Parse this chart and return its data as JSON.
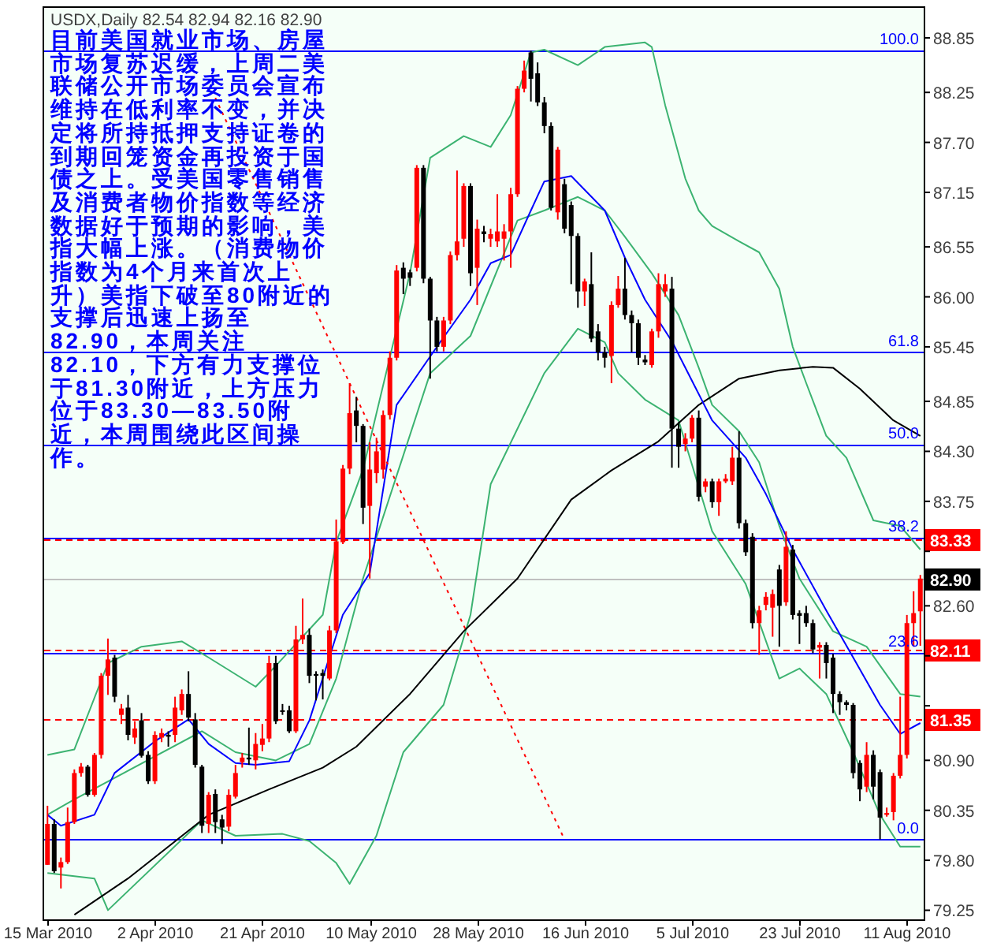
{
  "chart_data": {
    "type": "candlestick",
    "title": "USDX,Daily  82.54 82.94 82.16 82.90",
    "annotations": [
      "目前美国就业市场、房屋市场复苏迟缓，上周二美联储公开市场委员会宣布维持在低利率不变，并决定将所持抵押支持证卷的到期回笼资金再投资于国债之上。受美国零售销售及消费者物价指数等经济数据好于预期的影响，美指大幅上涨。（消费物价指数为4个月来首次上升）美指下破至80附近的支撑后迅速上扬至82.90，本周关注82.10，下方有力支撑位于81.30附近，上方压力位于83.30—83.50附近，本周围绕此区间操作。",
      {
        "text": "100.0",
        "y": 88.71
      },
      {
        "text": "61.8",
        "y": 85.39
      },
      {
        "text": "50.0",
        "y": 84.37
      },
      {
        "text": "38.2",
        "y": 83.35
      },
      {
        "text": "23.6",
        "y": 82.08
      },
      {
        "text": "0.0",
        "y": 80.03
      }
    ],
    "categories": [
      "15 Mar 2010",
      null,
      null,
      null,
      null,
      null,
      null,
      null,
      null,
      null,
      null,
      null,
      null,
      null,
      null,
      null,
      "2 Apr 2010",
      null,
      null,
      null,
      null,
      null,
      null,
      null,
      null,
      null,
      null,
      null,
      null,
      null,
      null,
      null,
      "21 Apr 2010",
      null,
      null,
      null,
      null,
      null,
      null,
      null,
      null,
      null,
      null,
      null,
      null,
      null,
      null,
      null,
      "10 May 2010",
      null,
      null,
      null,
      null,
      null,
      null,
      null,
      null,
      null,
      null,
      null,
      null,
      null,
      null,
      null,
      "28 May 2010",
      null,
      null,
      null,
      null,
      null,
      null,
      null,
      null,
      null,
      null,
      null,
      null,
      null,
      null,
      null,
      "16 Jun 2010",
      null,
      null,
      null,
      null,
      null,
      null,
      null,
      null,
      null,
      null,
      null,
      null,
      null,
      null,
      null,
      "5 Jul 2010",
      null,
      null,
      null,
      null,
      null,
      null,
      null,
      null,
      null,
      null,
      null,
      null,
      null,
      null,
      null,
      "23 Jul 2010",
      null,
      null,
      null,
      null,
      null,
      null,
      null,
      null,
      null,
      null,
      null,
      null,
      null,
      null,
      null,
      "11 Aug 2010",
      null,
      null
    ],
    "ohlc": [
      [
        79.75,
        80.4,
        79.75,
        80.2
      ],
      [
        80.2,
        80.25,
        79.66,
        79.68
      ],
      [
        79.72,
        79.83,
        79.49,
        79.78
      ],
      [
        79.78,
        80.38,
        79.76,
        80.22
      ],
      [
        80.22,
        80.8,
        80.2,
        80.76
      ],
      [
        80.76,
        80.87,
        80.72,
        80.83
      ],
      [
        80.83,
        80.85,
        80.5,
        80.52
      ],
      [
        80.52,
        80.98,
        80.5,
        80.96
      ],
      [
        80.96,
        81.86,
        80.92,
        81.83
      ],
      [
        81.83,
        82.24,
        81.62,
        82.01
      ],
      [
        82.03,
        82.06,
        81.54,
        81.6
      ],
      [
        81.4,
        81.52,
        81.3,
        81.47
      ],
      [
        81.48,
        81.62,
        81.12,
        81.18
      ],
      [
        81.15,
        81.33,
        81.08,
        81.25
      ],
      [
        81.34,
        81.42,
        80.93,
        80.95
      ],
      [
        80.96,
        81.0,
        80.64,
        80.67
      ],
      [
        80.67,
        81.22,
        80.64,
        81.18
      ],
      [
        81.15,
        81.25,
        81.1,
        81.2
      ],
      [
        81.18,
        81.22,
        81.05,
        81.16
      ],
      [
        81.18,
        81.6,
        81.1,
        81.48
      ],
      [
        81.45,
        81.68,
        81.4,
        81.63
      ],
      [
        81.63,
        81.88,
        81.33,
        81.37
      ],
      [
        81.35,
        81.42,
        80.82,
        80.85
      ],
      [
        80.83,
        80.85,
        80.1,
        80.18
      ],
      [
        80.2,
        80.55,
        80.1,
        80.52
      ],
      [
        80.53,
        80.58,
        80.1,
        80.22
      ],
      [
        80.25,
        80.3,
        79.98,
        80.16
      ],
      [
        80.17,
        80.58,
        80.12,
        80.52
      ],
      [
        80.5,
        80.85,
        80.48,
        80.76
      ],
      [
        80.88,
        80.98,
        80.82,
        80.93
      ],
      [
        80.93,
        81.26,
        80.85,
        80.91
      ],
      [
        80.9,
        81.2,
        80.8,
        81.08
      ],
      [
        81.07,
        81.3,
        81.0,
        81.14
      ],
      [
        81.14,
        82.05,
        81.1,
        81.97
      ],
      [
        81.97,
        82.05,
        81.3,
        81.33
      ],
      [
        81.45,
        81.52,
        81.4,
        81.44
      ],
      [
        81.45,
        81.5,
        81.2,
        81.22
      ],
      [
        81.22,
        82.38,
        81.2,
        82.23
      ],
      [
        82.23,
        82.68,
        82.18,
        82.28
      ],
      [
        82.28,
        82.35,
        81.75,
        81.83
      ],
      [
        81.85,
        81.88,
        81.56,
        81.83
      ],
      [
        81.86,
        81.9,
        81.57,
        81.83
      ],
      [
        81.8,
        82.38,
        81.78,
        82.33
      ],
      [
        82.33,
        83.55,
        82.3,
        83.31
      ],
      [
        83.3,
        84.15,
        83.28,
        84.11
      ],
      [
        84.11,
        85.05,
        84.05,
        84.72
      ],
      [
        84.75,
        84.9,
        84.4,
        84.58
      ],
      [
        84.58,
        84.6,
        83.5,
        83.68
      ],
      [
        83.7,
        84.4,
        82.9,
        84.1
      ],
      [
        84.06,
        84.45,
        83.95,
        84.3
      ],
      [
        84.1,
        84.75,
        84.0,
        84.7
      ],
      [
        84.7,
        85.4,
        84.65,
        85.33
      ],
      [
        85.33,
        86.35,
        85.3,
        86.29
      ],
      [
        86.32,
        86.38,
        86.03,
        86.2
      ],
      [
        86.27,
        86.3,
        86.12,
        86.21
      ],
      [
        86.32,
        87.45,
        86.28,
        87.42
      ],
      [
        87.42,
        87.45,
        86.15,
        86.2
      ],
      [
        86.2,
        86.22,
        85.1,
        85.74
      ],
      [
        85.74,
        85.78,
        85.4,
        85.45
      ],
      [
        85.45,
        85.78,
        85.4,
        85.74
      ],
      [
        85.74,
        86.5,
        85.7,
        86.46
      ],
      [
        86.46,
        87.39,
        86.4,
        86.61
      ],
      [
        86.64,
        87.25,
        86.55,
        87.22
      ],
      [
        87.22,
        87.25,
        86.12,
        86.26
      ],
      [
        86.32,
        86.85,
        85.91,
        86.75
      ],
      [
        86.72,
        86.78,
        86.6,
        86.69
      ],
      [
        86.64,
        86.75,
        86.55,
        86.69
      ],
      [
        86.61,
        87.13,
        86.55,
        86.72
      ],
      [
        86.64,
        86.8,
        86.4,
        86.72
      ],
      [
        86.72,
        87.2,
        86.32,
        87.13
      ],
      [
        87.13,
        88.32,
        87.1,
        88.29
      ],
      [
        88.29,
        88.6,
        88.25,
        88.49
      ],
      [
        88.69,
        88.71,
        88.15,
        88.4
      ],
      [
        88.46,
        88.58,
        88.1,
        88.14
      ],
      [
        88.14,
        88.2,
        87.8,
        87.88
      ],
      [
        87.88,
        87.92,
        86.95,
        86.98
      ],
      [
        86.93,
        87.65,
        86.85,
        87.62
      ],
      [
        87.24,
        87.3,
        86.7,
        86.75
      ],
      [
        87.01,
        87.05,
        86.14,
        86.67
      ],
      [
        86.67,
        86.7,
        85.88,
        86.06
      ],
      [
        86.06,
        86.2,
        85.9,
        86.17
      ],
      [
        86.14,
        86.49,
        85.5,
        85.54
      ],
      [
        85.62,
        85.7,
        85.3,
        85.39
      ],
      [
        85.39,
        85.45,
        85.22,
        85.33
      ],
      [
        85.35,
        85.95,
        85.05,
        85.91
      ],
      [
        85.91,
        86.23,
        85.88,
        86.09
      ],
      [
        86.09,
        86.43,
        85.75,
        85.8
      ],
      [
        85.8,
        85.85,
        85.39,
        85.71
      ],
      [
        85.71,
        85.75,
        85.25,
        85.33
      ],
      [
        85.31,
        85.36,
        85.25,
        85.28
      ],
      [
        85.25,
        85.65,
        85.22,
        85.62
      ],
      [
        85.62,
        86.26,
        85.55,
        86.14
      ],
      [
        86.06,
        86.25,
        86.0,
        86.14
      ],
      [
        86.09,
        86.22,
        84.12,
        84.55
      ],
      [
        84.55,
        84.62,
        84.12,
        84.35
      ],
      [
        84.38,
        84.5,
        84.3,
        84.44
      ],
      [
        84.44,
        84.7,
        84.4,
        84.67
      ],
      [
        84.67,
        84.75,
        83.75,
        83.8
      ],
      [
        83.91,
        84.0,
        83.85,
        83.97
      ],
      [
        83.97,
        84.0,
        83.68,
        83.74
      ],
      [
        83.74,
        84.0,
        83.59,
        83.97
      ],
      [
        83.97,
        84.05,
        83.95,
        84.0
      ],
      [
        83.97,
        84.35,
        83.93,
        84.23
      ],
      [
        84.23,
        84.52,
        83.45,
        83.51
      ],
      [
        83.51,
        83.55,
        83.15,
        83.19
      ],
      [
        83.36,
        83.4,
        82.35,
        82.41
      ],
      [
        82.41,
        82.6,
        82.06,
        82.55
      ],
      [
        82.61,
        82.75,
        82.55,
        82.7
      ],
      [
        82.58,
        82.78,
        82.26,
        82.73
      ],
      [
        83.0,
        83.05,
        82.15,
        82.6
      ],
      [
        82.64,
        83.42,
        82.6,
        83.25
      ],
      [
        83.22,
        83.27,
        82.45,
        82.5
      ],
      [
        82.52,
        82.55,
        82.18,
        82.49
      ],
      [
        82.52,
        82.6,
        82.37,
        82.41
      ],
      [
        82.41,
        82.45,
        82.08,
        82.12
      ],
      [
        82.14,
        82.2,
        81.8,
        82.17
      ],
      [
        82.17,
        82.2,
        81.8,
        81.97
      ],
      [
        82.03,
        82.07,
        81.42,
        81.63
      ],
      [
        81.63,
        81.66,
        81.4,
        81.54
      ],
      [
        81.54,
        81.56,
        81.45,
        81.51
      ],
      [
        81.51,
        81.53,
        80.7,
        80.76
      ],
      [
        80.87,
        80.9,
        80.45,
        80.58
      ],
      [
        80.61,
        81.1,
        80.55,
        80.96
      ],
      [
        80.96,
        81.01,
        80.47,
        80.61
      ],
      [
        80.77,
        80.8,
        80.03,
        80.27
      ],
      [
        80.3,
        80.38,
        80.28,
        80.32
      ],
      [
        80.33,
        80.76,
        80.24,
        80.73
      ],
      [
        80.73,
        81.6,
        80.7,
        80.96
      ],
      [
        80.96,
        82.5,
        80.92,
        82.41
      ],
      [
        82.41,
        82.76,
        82.15,
        82.52
      ],
      [
        82.54,
        82.94,
        82.16,
        82.9
      ]
    ],
    "colors": [
      "#ff0000",
      "#000000",
      "#ff0000",
      "#ff0000",
      "#ff0000",
      "#ff0000",
      "#000000",
      "#ff0000",
      "#ff0000",
      "#ff0000",
      "#000000",
      "#ff0000",
      "#000000",
      "#ff0000",
      "#000000",
      "#000000",
      "#ff0000",
      "#ff0000",
      "#000000",
      "#ff0000",
      "#ff0000",
      "#000000",
      "#000000",
      "#000000",
      "#ff0000",
      "#000000",
      "#000000",
      "#ff0000",
      "#ff0000",
      "#ff0000",
      "#000000",
      "#ff0000",
      "#ff0000",
      "#ff0000",
      "#000000",
      "#000000",
      "#000000",
      "#ff0000",
      "#ff0000",
      "#000000",
      "#000000",
      "#000000",
      "#ff0000",
      "#ff0000",
      "#ff0000",
      "#ff0000",
      "#000000",
      "#000000",
      "#ff0000",
      "#ff0000",
      "#ff0000",
      "#ff0000",
      "#ff0000",
      "#000000",
      "#000000",
      "#ff0000",
      "#000000",
      "#000000",
      "#000000",
      "#ff0000",
      "#ff0000",
      "#ff0000",
      "#ff0000",
      "#000000",
      "#ff0000",
      "#000000",
      "#ff0000",
      "#ff0000",
      "#ff0000",
      "#ff0000",
      "#ff0000",
      "#ff0000",
      "#000000",
      "#000000",
      "#000000",
      "#000000",
      "#ff0000",
      "#000000",
      "#000000",
      "#000000",
      "#ff0000",
      "#000000",
      "#000000",
      "#000000",
      "#ff0000",
      "#ff0000",
      "#000000",
      "#000000",
      "#000000",
      "#000000",
      "#ff0000",
      "#ff0000",
      "#ff0000",
      "#000000",
      "#000000",
      "#ff0000",
      "#ff0000",
      "#000000",
      "#ff0000",
      "#000000",
      "#ff0000",
      "#ff0000",
      "#ff0000",
      "#000000",
      "#000000",
      "#000000",
      "#ff0000",
      "#ff0000",
      "#ff0000",
      "#000000",
      "#ff0000",
      "#000000",
      "#000000",
      "#000000",
      "#000000",
      "#ff0000",
      "#000000",
      "#000000",
      "#000000",
      "#000000",
      "#000000",
      "#000000",
      "#ff0000",
      "#000000",
      "#000000",
      "#ff0000",
      "#ff0000",
      "#ff0000",
      "#ff0000",
      "#ff0000",
      "#ff0000"
    ],
    "series": [
      {
        "type": "line",
        "color": "#3cb371",
        "values": [
          80.96,
          null,
          null,
          null,
          81.02,
          null,
          null,
          null,
          null,
          81.97,
          null,
          null,
          null,
          null,
          82.15,
          null,
          null,
          null,
          null,
          null,
          82.21,
          null,
          null,
          null,
          82.03,
          null,
          null,
          null,
          null,
          null,
          null,
          81.71,
          null,
          null,
          81.94,
          null,
          null,
          null,
          null,
          null,
          null,
          82.5,
          null,
          83.3,
          null,
          null,
          null,
          84.1,
          null,
          null,
          null,
          null,
          null,
          null,
          86.26,
          null,
          null,
          87.53,
          null,
          null,
          null,
          null,
          87.77,
          null,
          null,
          null,
          87.65,
          null,
          null,
          88.0,
          null,
          null,
          88.69,
          null,
          88.72,
          null,
          null,
          null,
          null,
          88.55,
          null,
          null,
          null,
          88.75,
          null,
          null,
          null,
          null,
          null,
          88.8,
          88.75,
          null,
          88.11,
          null,
          null,
          87.3,
          null,
          86.95,
          null,
          86.78,
          null,
          null,
          null,
          86.61,
          null,
          null,
          86.49,
          null,
          null,
          86.09,
          null,
          85.45,
          null,
          85.05,
          null,
          null,
          84.47,
          null,
          null,
          84.23,
          null,
          null,
          null,
          83.54,
          null,
          null,
          null,
          83.48,
          null,
          null,
          83.22
        ]
      },
      {
        "type": "line",
        "color": "#3cb371",
        "values": [
          80.3,
          null,
          null,
          null,
          80.47,
          null,
          null,
          null,
          null,
          null,
          null,
          null,
          null,
          null,
          null,
          null,
          null,
          null,
          null,
          null,
          null,
          null,
          null,
          81.22,
          null,
          null,
          null,
          null,
          80.99,
          null,
          null,
          null,
          null,
          null,
          80.9,
          null,
          null,
          null,
          null,
          81.08,
          null,
          null,
          null,
          81.8,
          null,
          null,
          null,
          82.9,
          null,
          null,
          null,
          null,
          null,
          null,
          null,
          null,
          null,
          85.16,
          null,
          null,
          null,
          null,
          null,
          85.57,
          null,
          null,
          null,
          null,
          null,
          null,
          86.84,
          null,
          null,
          null,
          86.95,
          null,
          null,
          null,
          null,
          87.1,
          null,
          null,
          null,
          86.95,
          null,
          null,
          86.66,
          null,
          null,
          null,
          86.26,
          null,
          null,
          null,
          85.8,
          null,
          null,
          85.22,
          null,
          84.81,
          null,
          null,
          null,
          84.52,
          null,
          null,
          84.18,
          null,
          null,
          83.48,
          null,
          null,
          82.9,
          null,
          null,
          null,
          null,
          82.32,
          null,
          null,
          null,
          null,
          82.15,
          null,
          null,
          null,
          null,
          81.63,
          null,
          null,
          81.6
        ]
      },
      {
        "type": "line",
        "color": "#3cb371",
        "values": [
          79.66,
          null,
          null,
          null,
          null,
          null,
          null,
          79.6,
          null,
          79.25,
          null,
          null,
          null,
          null,
          null,
          null,
          null,
          null,
          null,
          null,
          null,
          null,
          null,
          80.24,
          null,
          null,
          null,
          null,
          80.07,
          null,
          null,
          null,
          null,
          null,
          null,
          80.09,
          null,
          null,
          null,
          80.01,
          null,
          null,
          null,
          79.77,
          null,
          79.54,
          null,
          null,
          null,
          80.07,
          null,
          null,
          null,
          80.99,
          null,
          null,
          null,
          null,
          null,
          81.51,
          null,
          null,
          null,
          82.5,
          null,
          null,
          83.94,
          null,
          null,
          null,
          null,
          null,
          null,
          null,
          85.16,
          null,
          null,
          null,
          null,
          85.65,
          null,
          null,
          null,
          85.5,
          null,
          85.16,
          null,
          null,
          null,
          84.87,
          null,
          null,
          null,
          null,
          84.64,
          null,
          null,
          null,
          null,
          83.42,
          null,
          null,
          null,
          null,
          82.84,
          null,
          null,
          null,
          null,
          81.8,
          null,
          null,
          81.91,
          null,
          null,
          null,
          81.63,
          null,
          null,
          null,
          80.99,
          null,
          null,
          null,
          80.3,
          null,
          null,
          79.95,
          null,
          null,
          79.95
        ]
      },
      {
        "type": "line",
        "color": "#000000",
        "values": [
          null,
          null,
          null,
          null,
          79.2,
          null,
          null,
          null,
          null,
          null,
          null,
          null,
          79.6,
          null,
          null,
          null,
          null,
          null,
          null,
          null,
          null,
          null,
          null,
          null,
          80.3,
          null,
          null,
          null,
          null,
          null,
          null,
          null,
          null,
          80.58,
          null,
          null,
          null,
          null,
          null,
          null,
          null,
          80.82,
          null,
          null,
          null,
          null,
          81.05,
          null,
          null,
          null,
          null,
          null,
          null,
          null,
          81.63,
          null,
          null,
          null,
          null,
          null,
          null,
          null,
          82.32,
          null,
          null,
          null,
          null,
          null,
          null,
          null,
          82.9,
          null,
          null,
          null,
          null,
          null,
          null,
          null,
          83.77,
          null,
          null,
          null,
          null,
          null,
          84.09,
          null,
          null,
          null,
          null,
          null,
          null,
          84.41,
          null,
          null,
          null,
          null,
          null,
          84.81,
          null,
          null,
          null,
          null,
          null,
          85.1,
          null,
          null,
          null,
          null,
          null,
          85.19,
          null,
          null,
          null,
          null,
          85.23,
          null,
          null,
          85.22,
          null,
          null,
          null,
          84.99,
          null,
          null,
          null,
          null,
          84.64,
          null,
          null,
          null,
          84.47
        ]
      },
      {
        "type": "line",
        "color": "#0000ff",
        "values": [
          80.3,
          null,
          80.18,
          null,
          null,
          null,
          null,
          80.3,
          null,
          null,
          80.76,
          null,
          null,
          null,
          null,
          null,
          81.11,
          null,
          null,
          null,
          null,
          81.35,
          null,
          null,
          81.08,
          null,
          null,
          null,
          80.87,
          null,
          null,
          80.85,
          null,
          null,
          null,
          null,
          80.89,
          null,
          null,
          81.34,
          null,
          null,
          null,
          null,
          82.5,
          null,
          null,
          null,
          82.96,
          null,
          null,
          null,
          84.81,
          null,
          null,
          null,
          null,
          null,
          85.45,
          null,
          null,
          null,
          null,
          85.97,
          null,
          null,
          86.37,
          null,
          null,
          86.46,
          null,
          null,
          86.95,
          null,
          87.27,
          null,
          null,
          null,
          87.33,
          null,
          null,
          null,
          null,
          86.95,
          null,
          null,
          86.43,
          null,
          null,
          85.97,
          null,
          null,
          null,
          85.51,
          null,
          null,
          null,
          null,
          null,
          84.64,
          null,
          null,
          null,
          null,
          84.23,
          null,
          null,
          83.83,
          null,
          null,
          null,
          83.22,
          null,
          null,
          null,
          null,
          82.55,
          null,
          null,
          null,
          82.03,
          null,
          null,
          null,
          81.51,
          null,
          null,
          81.19,
          null,
          null,
          81.31
        ]
      },
      {
        "type": "line",
        "color": "#ff0000",
        "line_style": "dotted",
        "values": [
          null,
          null,
          null,
          null,
          null,
          null,
          null,
          null,
          null,
          null,
          null,
          null,
          null,
          null,
          null,
          null,
          null,
          null,
          null,
          null,
          null,
          null,
          null,
          null,
          null,
          88.19,
          null,
          null,
          null,
          null,
          null,
          null,
          null,
          null,
          null,
          null,
          null,
          null,
          null,
          null,
          null,
          null,
          null,
          null,
          null,
          null,
          null,
          null,
          null,
          null,
          null,
          null,
          null,
          null,
          null,
          null,
          null,
          null,
          null,
          null,
          null,
          null,
          null,
          null,
          null,
          null,
          null,
          null,
          null,
          null,
          null,
          null,
          null,
          null,
          null,
          null,
          null,
          80.03,
          null,
          null,
          null,
          null,
          null,
          null,
          null,
          null,
          null,
          null,
          null,
          null,
          null,
          null,
          null,
          null,
          null,
          null,
          null,
          null,
          null,
          null,
          null,
          null,
          null,
          null,
          null,
          null,
          null,
          null,
          null,
          null,
          null,
          null,
          null,
          null,
          null,
          null,
          null,
          null,
          null,
          null,
          null,
          null,
          null,
          null,
          null,
          null,
          null,
          null,
          null,
          null,
          null
        ]
      }
    ],
    "ylim": [
      79.15,
      89.18
    ],
    "yticks": [
      88.85,
      88.25,
      {
        "value": 87.7,
        "label": "87.70"
      },
      87.15,
      86.55,
      {
        "value": 86.0,
        "label": "86.00"
      },
      85.45,
      84.85,
      {
        "value": 84.3,
        "label": "84.30"
      },
      83.75,
      {
        "value": 83.2,
        "label": null
      },
      {
        "value": 82.6,
        "label": "82.60"
      },
      {
        "value": 82.05,
        "label": null
      },
      {
        "value": 81.5,
        "label": null
      },
      {
        "value": 80.9,
        "label": "80.90"
      },
      80.35,
      {
        "value": 79.8,
        "label": "79.80"
      },
      79.25
    ],
    "ref_lines": [
      {
        "axis": "y",
        "value": 88.71,
        "color": "#0000ff"
      },
      {
        "axis": "y",
        "value": 85.39,
        "color": "#0000ff"
      },
      {
        "axis": "y",
        "value": 84.37,
        "color": "#0000ff"
      },
      {
        "axis": "y",
        "value": 83.35,
        "color": "#0000ff"
      },
      {
        "axis": "y",
        "value": 82.08,
        "color": "#0000ff"
      },
      {
        "axis": "y",
        "value": 80.03,
        "color": "#0000ff"
      },
      {
        "axis": "y",
        "value": 83.33,
        "label": "83.33",
        "color": "#ff0000",
        "line_style": "dashed"
      },
      {
        "axis": "y",
        "value": 82.11,
        "label": "82.11",
        "color": "#ff0000",
        "line_style": "dashed"
      },
      {
        "axis": "y",
        "value": 81.35,
        "label": "81.35",
        "color": "#ff0000",
        "line_style": "dashed"
      },
      {
        "axis": "y",
        "value": 82.9,
        "label": "82.90",
        "color": "#c0c0c0"
      }
    ]
  }
}
